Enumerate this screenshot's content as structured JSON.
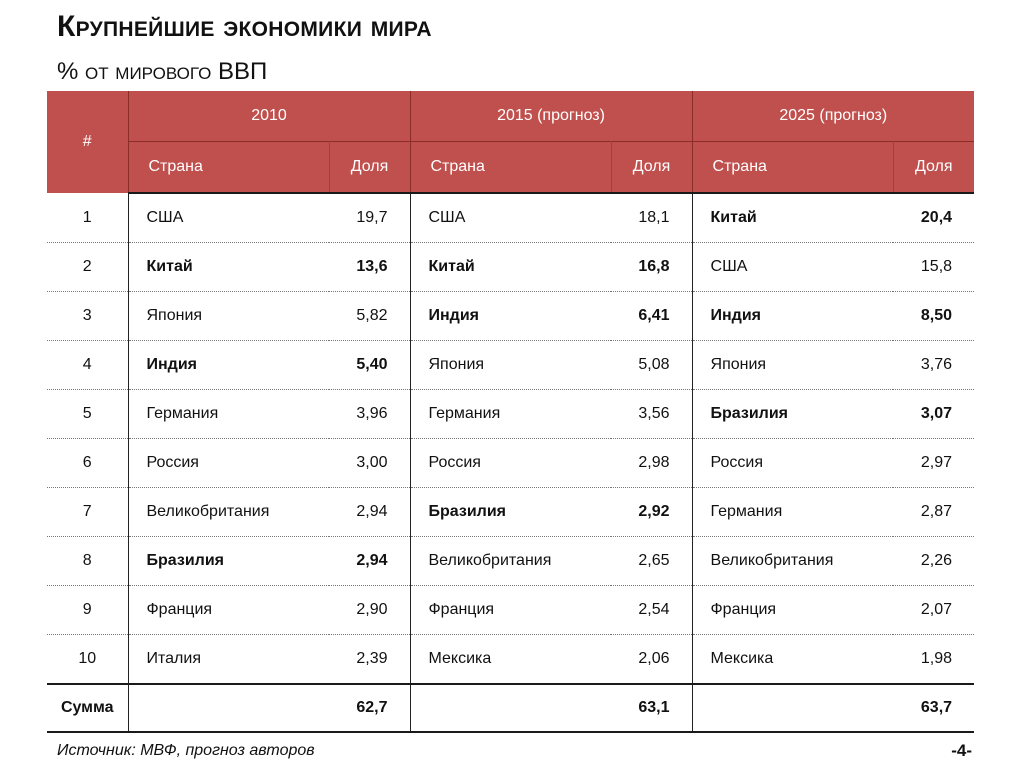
{
  "title": "Крупнейшие экономики мира",
  "subtitle": "% от мирового ВВП",
  "table": {
    "num_header": "#",
    "years": [
      "2010",
      "2015 (прогноз)",
      "2025 (прогноз)"
    ],
    "country_header": "Страна",
    "share_header": "Доля",
    "rows": [
      {
        "n": "1",
        "cells": [
          {
            "country": "США",
            "share": "19,7",
            "bold": false
          },
          {
            "country": "США",
            "share": "18,1",
            "bold": false
          },
          {
            "country": "Китай",
            "share": "20,4",
            "bold": true
          }
        ]
      },
      {
        "n": "2",
        "cells": [
          {
            "country": "Китай",
            "share": "13,6",
            "bold": true
          },
          {
            "country": "Китай",
            "share": "16,8",
            "bold": true
          },
          {
            "country": "США",
            "share": "15,8",
            "bold": false
          }
        ]
      },
      {
        "n": "3",
        "cells": [
          {
            "country": "Япония",
            "share": "5,82",
            "bold": false
          },
          {
            "country": "Индия",
            "share": "6,41",
            "bold": true
          },
          {
            "country": "Индия",
            "share": "8,50",
            "bold": true
          }
        ]
      },
      {
        "n": "4",
        "cells": [
          {
            "country": "Индия",
            "share": "5,40",
            "bold": true
          },
          {
            "country": "Япония",
            "share": "5,08",
            "bold": false
          },
          {
            "country": "Япония",
            "share": "3,76",
            "bold": false
          }
        ]
      },
      {
        "n": "5",
        "cells": [
          {
            "country": "Германия",
            "share": "3,96",
            "bold": false
          },
          {
            "country": "Германия",
            "share": "3,56",
            "bold": false
          },
          {
            "country": "Бразилия",
            "share": "3,07",
            "bold": true
          }
        ]
      },
      {
        "n": "6",
        "cells": [
          {
            "country": "Россия",
            "share": "3,00",
            "bold": false
          },
          {
            "country": "Россия",
            "share": "2,98",
            "bold": false
          },
          {
            "country": "Россия",
            "share": "2,97",
            "bold": false
          }
        ]
      },
      {
        "n": "7",
        "cells": [
          {
            "country": "Великобритания",
            "share": "2,94",
            "bold": false
          },
          {
            "country": "Бразилия",
            "share": "2,92",
            "bold": true
          },
          {
            "country": "Германия",
            "share": "2,87",
            "bold": false
          }
        ]
      },
      {
        "n": "8",
        "cells": [
          {
            "country": "Бразилия",
            "share": "2,94",
            "bold": true
          },
          {
            "country": "Великобритания",
            "share": "2,65",
            "bold": false
          },
          {
            "country": "Великобритания",
            "share": "2,26",
            "bold": false
          }
        ]
      },
      {
        "n": "9",
        "cells": [
          {
            "country": "Франция",
            "share": "2,90",
            "bold": false
          },
          {
            "country": "Франция",
            "share": "2,54",
            "bold": false
          },
          {
            "country": "Франция",
            "share": "2,07",
            "bold": false
          }
        ]
      },
      {
        "n": "10",
        "cells": [
          {
            "country": "Италия",
            "share": "2,39",
            "bold": false
          },
          {
            "country": "Мексика",
            "share": "2,06",
            "bold": false
          },
          {
            "country": "Мексика",
            "share": "1,98",
            "bold": false
          }
        ]
      }
    ],
    "sum": {
      "label": "Сумма",
      "values": [
        "62,7",
        "63,1",
        "63,7"
      ]
    }
  },
  "source": "Источник: МВФ, прогноз авторов",
  "page_number": "-4-",
  "colors": {
    "header_bg": "#c0504d",
    "header_text": "#ffffff"
  }
}
